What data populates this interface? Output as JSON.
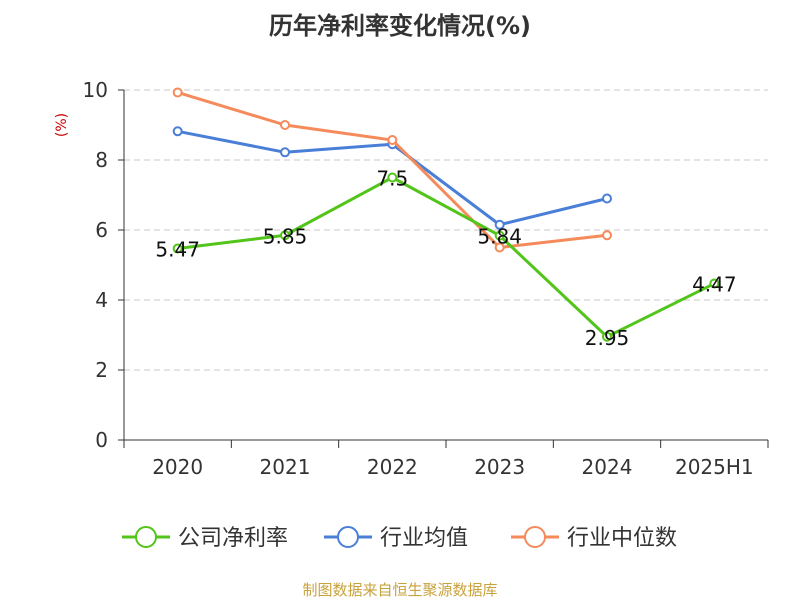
{
  "chart_data": {
    "type": "line",
    "title": "历年净利率变化情况(%)",
    "ylabel": "(%)",
    "xlabel": "",
    "categories": [
      "2020",
      "2021",
      "2022",
      "2023",
      "2024",
      "2025H1"
    ],
    "yticks": [
      "0",
      "2",
      "4",
      "6",
      "8",
      "10"
    ],
    "ylim": [
      0,
      10
    ],
    "grid": "horizontal dashed",
    "legend_position": "bottom",
    "series": [
      {
        "name": "公司净利率",
        "color": "#52c41a",
        "values": [
          5.47,
          5.85,
          7.5,
          5.84,
          2.95,
          4.47
        ],
        "labels": [
          "5.47",
          "5.85",
          "7.5",
          "5.84",
          "2.95",
          "4.47"
        ]
      },
      {
        "name": "行业均值",
        "color": "#4a7fd8",
        "values": [
          8.82,
          8.22,
          8.45,
          6.15,
          6.9,
          null
        ]
      },
      {
        "name": "行业中位数",
        "color": "#f58a5a",
        "values": [
          9.93,
          9.0,
          8.57,
          5.5,
          5.85,
          null
        ]
      }
    ]
  },
  "source_note": "制图数据来自恒生聚源数据库"
}
